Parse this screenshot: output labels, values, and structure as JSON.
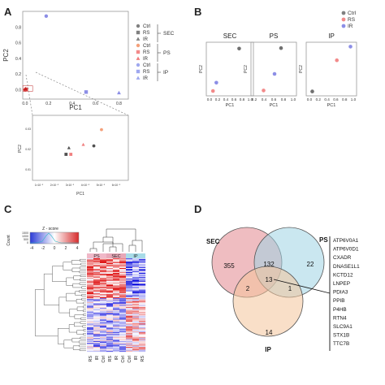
{
  "panels": {
    "A": {
      "letter": "A",
      "main_plot": {
        "xlabel": "PC1",
        "ylabel": "PC2",
        "x_ticks": [
          {
            "v": 0.0,
            "t": "0.0"
          },
          {
            "v": 0.2,
            "t": "0.2"
          },
          {
            "v": 0.4,
            "t": "0.4"
          },
          {
            "v": 0.6,
            "t": "0.6"
          },
          {
            "v": 0.8,
            "t": "0.8"
          }
        ],
        "y_ticks": [
          {
            "v": 0.0,
            "t": "0.0"
          },
          {
            "v": 0.2,
            "t": "0.2"
          },
          {
            "v": 0.4,
            "t": "0.4"
          },
          {
            "v": 0.6,
            "t": "0.6"
          },
          {
            "v": 0.8,
            "t": "0.8"
          }
        ],
        "xlim": [
          -0.02,
          0.88
        ],
        "ylim": [
          -0.12,
          1.0
        ],
        "points": [
          {
            "x": 0.18,
            "y": 0.94,
            "color": "#8c8ee6",
            "shape": "circle"
          },
          {
            "x": 0.52,
            "y": -0.03,
            "color": "#8c8ee6",
            "shape": "square"
          },
          {
            "x": 0.8,
            "y": -0.04,
            "color": "#8c8ee6",
            "shape": "triangle"
          },
          {
            "x": 0.0,
            "y": 0.0,
            "color": "#d42a2a",
            "shape": "circle"
          },
          {
            "x": 0.01,
            "y": 0.005,
            "color": "#e35353",
            "shape": "square"
          },
          {
            "x": 0.005,
            "y": 0.01,
            "color": "#c41e1e",
            "shape": "triangle"
          }
        ]
      },
      "legend": [
        {
          "label": "Ctrl",
          "color": "#808080",
          "shape": "circle"
        },
        {
          "label": "RS",
          "color": "#808080",
          "shape": "square"
        },
        {
          "label": "IR",
          "color": "#808080",
          "shape": "triangle"
        },
        {
          "label": "Ctrl",
          "color": "#f4a07a",
          "shape": "circle"
        },
        {
          "label": "RS",
          "color": "#f28a8a",
          "shape": "square"
        },
        {
          "label": "IR",
          "color": "#f07c7c",
          "shape": "triangle"
        },
        {
          "label": "Ctrl",
          "color": "#9fa8ef",
          "shape": "circle"
        },
        {
          "label": "RS",
          "color": "#9fa8ef",
          "shape": "square"
        },
        {
          "label": "IR",
          "color": "#9fa8ef",
          "shape": "triangle"
        }
      ],
      "legend_groups": [
        "SEC",
        "PS",
        "IP"
      ],
      "inset": {
        "xlabel": "PC1",
        "ylabel": "PC2",
        "x_tick_labels": [
          "1×10⁻⁵",
          "2×10⁻⁵",
          "3×10⁻⁵",
          "4×10⁻⁵",
          "5×10⁻⁵",
          "6×10⁻⁵"
        ],
        "y_tick_labels": [
          "0.01",
          "0.02",
          "0.03"
        ],
        "points": [
          {
            "x": 0.72,
            "y": 0.78,
            "color": "#f4a07a",
            "shape": "circle"
          },
          {
            "x": 0.64,
            "y": 0.53,
            "color": "#505050",
            "shape": "circle"
          },
          {
            "x": 0.53,
            "y": 0.55,
            "color": "#f08080",
            "shape": "triangle"
          },
          {
            "x": 0.38,
            "y": 0.5,
            "color": "#505050",
            "shape": "triangle"
          },
          {
            "x": 0.35,
            "y": 0.4,
            "color": "#505050",
            "shape": "square"
          },
          {
            "x": 0.4,
            "y": 0.4,
            "color": "#f08080",
            "shape": "square"
          }
        ]
      }
    },
    "B": {
      "letter": "B",
      "legend": [
        {
          "label": "Ctrl",
          "color": "#808080"
        },
        {
          "label": "RS",
          "color": "#f28a8a"
        },
        {
          "label": "IR",
          "color": "#8c8ee6"
        }
      ],
      "subplots": [
        {
          "title": "SEC",
          "xlabel": "PC1",
          "ylabel": "PC2",
          "x_tick_labels": [
            "0.0",
            "0.2",
            "0.4",
            "0.6",
            "0.8",
            "1.0"
          ],
          "points": [
            {
              "x": 0.72,
              "y": 0.92,
              "color": "#707070"
            },
            {
              "x": 0.18,
              "y": 0.22,
              "color": "#8c8ee6"
            },
            {
              "x": 0.1,
              "y": 0.05,
              "color": "#f28a8a"
            }
          ]
        },
        {
          "title": "PS",
          "xlabel": "PC1",
          "ylabel": "PC2",
          "x_tick_labels": [
            "0.2",
            "0.4",
            "0.6",
            "0.8",
            "1.0"
          ],
          "points": [
            {
              "x": 0.68,
              "y": 0.93,
              "color": "#707070"
            },
            {
              "x": 0.52,
              "y": 0.4,
              "color": "#8c8ee6"
            },
            {
              "x": 0.25,
              "y": 0.06,
              "color": "#f28a8a"
            }
          ]
        },
        {
          "title": "IP",
          "xlabel": "PC1",
          "ylabel": "PC2",
          "x_tick_labels": [
            "0.0",
            "0.2",
            "0.4",
            "0.6",
            "0.8",
            "1.0"
          ],
          "points": [
            {
              "x": 0.92,
              "y": 0.96,
              "color": "#8c8ee6"
            },
            {
              "x": 0.62,
              "y": 0.68,
              "color": "#f28a8a"
            },
            {
              "x": 0.08,
              "y": 0.04,
              "color": "#707070"
            }
          ]
        }
      ]
    },
    "C": {
      "letter": "C",
      "key_title": "Z - score",
      "count_label": "Count",
      "count_ticks": [
        "1500",
        "1000",
        "500",
        "0"
      ],
      "z_ticks": [
        "-4",
        "-2",
        "0",
        "2",
        "4"
      ],
      "groups": [
        {
          "label": "PS",
          "color": "#f0b8c8"
        },
        {
          "label": "SEC",
          "color": "#e8a8b8"
        },
        {
          "label": "IP",
          "color": "#a8dce8"
        }
      ],
      "columns": [
        "RS",
        "IR",
        "Ctrl",
        "RS",
        "IR",
        "Ctrl",
        "Ctrl",
        "IR",
        "RS"
      ]
    },
    "D": {
      "letter": "D",
      "sets": [
        {
          "label": "SEC",
          "color": "#e9a7ac"
        },
        {
          "label": "PS",
          "color": "#9fd3e3"
        },
        {
          "label": "IP",
          "color": "#f4c49a"
        }
      ],
      "regions": {
        "sec_only": "355",
        "ps_only": "22",
        "ip_only": "14",
        "sec_ps": "132",
        "sec_ip": "2",
        "ps_ip": "1",
        "all": "13"
      },
      "genes": [
        "ATP6V0A1",
        "ATP6V0D1",
        "CXADR",
        "DNASE1L1",
        "KCTD12",
        "LNPEP",
        "PDIA3",
        "PPIB",
        "P4HB",
        "RTN4",
        "SLC9A1",
        "STX1B",
        "TTC7B"
      ]
    }
  }
}
